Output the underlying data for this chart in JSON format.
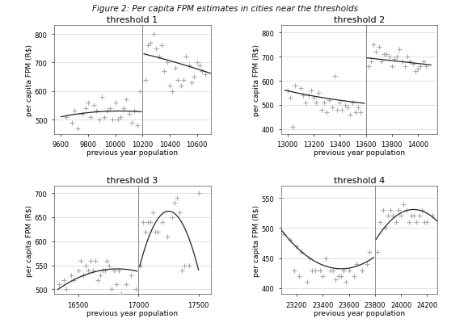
{
  "figure_title": "Figure 2: Per capita FPM estimates in cities near the thresholds",
  "subplots": [
    {
      "title": "threshold 1",
      "threshold": 10200,
      "xlim": [
        9550,
        10700
      ],
      "ylim": [
        450,
        830
      ],
      "xticks": [
        9600,
        9800,
        10000,
        10200,
        10400,
        10600
      ],
      "yticks": [
        500,
        600,
        700,
        800
      ],
      "xlabel": "previous year population",
      "ylabel": "per capita FPM (R$)",
      "scatter_left": [
        [
          9640,
          510
        ],
        [
          9680,
          490
        ],
        [
          9700,
          530
        ],
        [
          9720,
          470
        ],
        [
          9760,
          520
        ],
        [
          9780,
          540
        ],
        [
          9800,
          560
        ],
        [
          9820,
          510
        ],
        [
          9840,
          550
        ],
        [
          9860,
          530
        ],
        [
          9880,
          500
        ],
        [
          9900,
          580
        ],
        [
          9920,
          510
        ],
        [
          9940,
          530
        ],
        [
          9960,
          540
        ],
        [
          9980,
          500
        ],
        [
          10000,
          560
        ],
        [
          10020,
          500
        ],
        [
          10040,
          510
        ],
        [
          10060,
          540
        ],
        [
          10080,
          570
        ],
        [
          10100,
          520
        ],
        [
          10120,
          490
        ],
        [
          10140,
          530
        ],
        [
          10160,
          480
        ],
        [
          10180,
          600
        ]
      ],
      "scatter_right": [
        [
          10220,
          640
        ],
        [
          10240,
          760
        ],
        [
          10260,
          770
        ],
        [
          10280,
          800
        ],
        [
          10300,
          750
        ],
        [
          10320,
          720
        ],
        [
          10340,
          760
        ],
        [
          10360,
          670
        ],
        [
          10380,
          700
        ],
        [
          10400,
          620
        ],
        [
          10420,
          600
        ],
        [
          10440,
          680
        ],
        [
          10460,
          640
        ],
        [
          10480,
          620
        ],
        [
          10500,
          640
        ],
        [
          10520,
          720
        ],
        [
          10540,
          690
        ],
        [
          10560,
          630
        ],
        [
          10580,
          650
        ],
        [
          10600,
          700
        ],
        [
          10620,
          690
        ],
        [
          10640,
          670
        ],
        [
          10660,
          660
        ]
      ],
      "curve_left_x": [
        9600,
        9700,
        9800,
        9900,
        10000,
        10100,
        10190
      ],
      "curve_left_y": [
        510,
        518,
        524,
        528,
        530,
        530,
        527
      ],
      "curve_right_x": [
        10210,
        10300,
        10400,
        10500,
        10600,
        10700
      ],
      "curve_right_y": [
        730,
        720,
        706,
        692,
        678,
        662
      ]
    },
    {
      "title": "threshold 2",
      "threshold": 13600,
      "xlim": [
        12950,
        14150
      ],
      "ylim": [
        380,
        830
      ],
      "xticks": [
        13000,
        13200,
        13400,
        13600,
        13800,
        14000
      ],
      "yticks": [
        400,
        500,
        600,
        700,
        800
      ],
      "xlabel": "previous year population",
      "ylabel": "per capita FPM (R$)",
      "scatter_left": [
        [
          13000,
          560
        ],
        [
          13020,
          530
        ],
        [
          13040,
          410
        ],
        [
          13060,
          580
        ],
        [
          13100,
          570
        ],
        [
          13120,
          540
        ],
        [
          13140,
          510
        ],
        [
          13160,
          540
        ],
        [
          13180,
          560
        ],
        [
          13200,
          530
        ],
        [
          13220,
          510
        ],
        [
          13240,
          550
        ],
        [
          13260,
          480
        ],
        [
          13280,
          510
        ],
        [
          13300,
          470
        ],
        [
          13320,
          520
        ],
        [
          13340,
          490
        ],
        [
          13360,
          620
        ],
        [
          13380,
          480
        ],
        [
          13400,
          510
        ],
        [
          13420,
          480
        ],
        [
          13440,
          500
        ],
        [
          13460,
          490
        ],
        [
          13480,
          460
        ],
        [
          13500,
          510
        ],
        [
          13520,
          470
        ],
        [
          13540,
          490
        ],
        [
          13560,
          470
        ]
      ],
      "scatter_right": [
        [
          13620,
          660
        ],
        [
          13640,
          680
        ],
        [
          13660,
          750
        ],
        [
          13680,
          720
        ],
        [
          13700,
          740
        ],
        [
          13720,
          680
        ],
        [
          13740,
          710
        ],
        [
          13760,
          710
        ],
        [
          13780,
          700
        ],
        [
          13800,
          660
        ],
        [
          13820,
          690
        ],
        [
          13840,
          700
        ],
        [
          13860,
          730
        ],
        [
          13880,
          680
        ],
        [
          13900,
          660
        ],
        [
          13920,
          700
        ],
        [
          13940,
          680
        ],
        [
          13960,
          670
        ],
        [
          13980,
          640
        ],
        [
          14000,
          650
        ],
        [
          14020,
          660
        ],
        [
          14040,
          680
        ],
        [
          14060,
          660
        ]
      ],
      "curve_left_x": [
        12980,
        13100,
        13200,
        13300,
        13400,
        13500,
        13590
      ],
      "curve_left_y": [
        560,
        548,
        537,
        527,
        519,
        511,
        508
      ],
      "curve_right_x": [
        13610,
        13700,
        13800,
        13900,
        14000,
        14100
      ],
      "curve_right_y": [
        695,
        690,
        684,
        678,
        672,
        666
      ]
    },
    {
      "title": "threshold 3",
      "threshold": 17000,
      "xlim": [
        16300,
        17600
      ],
      "ylim": [
        490,
        715
      ],
      "xticks": [
        16500,
        17000,
        17500
      ],
      "yticks": [
        500,
        550,
        600,
        650,
        700
      ],
      "xlabel": "previous year population",
      "ylabel": "per capita FPM (R$)",
      "scatter_left": [
        [
          16340,
          510
        ],
        [
          16380,
          520
        ],
        [
          16400,
          500
        ],
        [
          16440,
          530
        ],
        [
          16460,
          520
        ],
        [
          16500,
          540
        ],
        [
          16520,
          560
        ],
        [
          16540,
          530
        ],
        [
          16560,
          550
        ],
        [
          16580,
          540
        ],
        [
          16600,
          560
        ],
        [
          16620,
          540
        ],
        [
          16640,
          560
        ],
        [
          16660,
          520
        ],
        [
          16680,
          530
        ],
        [
          16700,
          540
        ],
        [
          16720,
          540
        ],
        [
          16740,
          560
        ],
        [
          16760,
          550
        ],
        [
          16780,
          500
        ],
        [
          16800,
          540
        ],
        [
          16820,
          510
        ],
        [
          16840,
          540
        ],
        [
          16860,
          490
        ],
        [
          16900,
          510
        ],
        [
          16940,
          530
        ],
        [
          16980,
          500
        ]
      ],
      "scatter_right": [
        [
          17020,
          550
        ],
        [
          17040,
          640
        ],
        [
          17060,
          620
        ],
        [
          17080,
          640
        ],
        [
          17100,
          640
        ],
        [
          17120,
          660
        ],
        [
          17140,
          620
        ],
        [
          17160,
          620
        ],
        [
          17200,
          640
        ],
        [
          17240,
          610
        ],
        [
          17280,
          650
        ],
        [
          17300,
          680
        ],
        [
          17320,
          690
        ],
        [
          17340,
          660
        ],
        [
          17360,
          540
        ],
        [
          17380,
          550
        ],
        [
          17420,
          550
        ],
        [
          17500,
          700
        ]
      ],
      "curve_left_x": [
        16330,
        16400,
        16500,
        16600,
        16700,
        16800,
        16900,
        16990
      ],
      "curve_left_y": [
        500,
        511,
        524,
        534,
        540,
        543,
        541,
        538
      ],
      "curve_right_x": [
        17010,
        17100,
        17200,
        17300,
        17400,
        17500
      ],
      "curve_right_y": [
        555,
        612,
        643,
        655,
        648,
        525
      ]
    },
    {
      "title": "threshold 4",
      "threshold": 23800,
      "xlim": [
        23080,
        24280
      ],
      "ylim": [
        390,
        570
      ],
      "xticks": [
        23200,
        23400,
        23600,
        23800,
        24000,
        24200
      ],
      "yticks": [
        400,
        450,
        500,
        550
      ],
      "xlabel": "previous year population",
      "ylabel": "per capita FPM (R$)",
      "scatter_left": [
        [
          23080,
          550
        ],
        [
          23100,
          490
        ],
        [
          23150,
          480
        ],
        [
          23180,
          430
        ],
        [
          23200,
          470
        ],
        [
          23220,
          420
        ],
        [
          23240,
          460
        ],
        [
          23280,
          410
        ],
        [
          23300,
          450
        ],
        [
          23320,
          430
        ],
        [
          23340,
          430
        ],
        [
          23380,
          430
        ],
        [
          23400,
          420
        ],
        [
          23420,
          450
        ],
        [
          23460,
          430
        ],
        [
          23480,
          430
        ],
        [
          23500,
          415
        ],
        [
          23520,
          420
        ],
        [
          23540,
          420
        ],
        [
          23560,
          430
        ],
        [
          23580,
          410
        ],
        [
          23600,
          430
        ],
        [
          23640,
          420
        ],
        [
          23660,
          440
        ],
        [
          23700,
          430
        ],
        [
          23740,
          440
        ],
        [
          23760,
          460
        ]
      ],
      "scatter_right": [
        [
          23820,
          460
        ],
        [
          23840,
          510
        ],
        [
          23860,
          530
        ],
        [
          23880,
          500
        ],
        [
          23900,
          520
        ],
        [
          23920,
          530
        ],
        [
          23940,
          520
        ],
        [
          23960,
          510
        ],
        [
          23980,
          530
        ],
        [
          24000,
          520
        ],
        [
          24020,
          540
        ],
        [
          24040,
          530
        ],
        [
          24060,
          510
        ],
        [
          24080,
          520
        ],
        [
          24100,
          520
        ],
        [
          24120,
          510
        ],
        [
          24140,
          520
        ],
        [
          24160,
          530
        ],
        [
          24180,
          510
        ],
        [
          24200,
          510
        ],
        [
          24240,
          520
        ]
      ],
      "curve_left_x": [
        23080,
        23200,
        23400,
        23600,
        23700,
        23790
      ],
      "curve_left_y": [
        500,
        465,
        435,
        438,
        443,
        447
      ],
      "curve_right_x": [
        23810,
        23900,
        24000,
        24100,
        24200,
        24280
      ],
      "curve_right_y": [
        480,
        510,
        525,
        530,
        523,
        512
      ]
    }
  ],
  "scatter_color": "#aaaaaa",
  "line_color": "#222222",
  "threshold_line_color": "#888888",
  "bg_color": "#ffffff",
  "scatter_marker": "+",
  "scatter_size": 15,
  "scatter_lw": 0.8,
  "title_fontsize": 8,
  "axis_label_fontsize": 6.5,
  "tick_fontsize": 6.0
}
